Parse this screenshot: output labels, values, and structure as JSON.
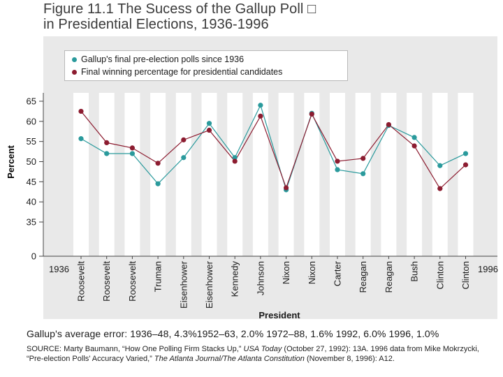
{
  "title": {
    "line1": "Figure 11.1  The Sucess of the Gallup Poll □",
    "line2": "in Presidential Elections, 1936-1996"
  },
  "legend": {
    "gallup": "Gallup's final pre-election polls since 1936",
    "winning": "Final winning percentage for presidential candidates"
  },
  "colors": {
    "gallup": "#2a9a9c",
    "winning": "#8c1c30",
    "band": "#ffffff",
    "panel": "#e9e9e9"
  },
  "chart_data": {
    "type": "line",
    "title": "The Sucess of the Gallup Poll in Presidential Elections, 1936-1996",
    "ylabel": "Percent",
    "xlabel": "President",
    "yticks": [
      0,
      35,
      40,
      45,
      50,
      55,
      60,
      65
    ],
    "ylim": [
      0,
      65
    ],
    "x_start_label": "1936",
    "x_end_label": "1996",
    "categories": [
      "Roosevelt",
      "Roosevelt",
      "Roosevelt",
      "Truman",
      "Eisenhower",
      "Eisenhower",
      "Kennedy",
      "Johnson",
      "Nixon",
      "Nixon",
      "Carter",
      "Reagan",
      "Reagan",
      "Bush",
      "Clinton",
      "Clinton"
    ],
    "series": [
      {
        "name": "Gallup's final pre-election polls since 1936",
        "color": "#2a9a9c",
        "values": [
          55.7,
          52.0,
          52.0,
          44.5,
          51.0,
          59.5,
          51.0,
          64.0,
          43.0,
          62.0,
          48.0,
          47.0,
          59.0,
          56.0,
          49.0,
          52.0
        ]
      },
      {
        "name": "Final winning percentage for presidential candidates",
        "color": "#8c1c30",
        "values": [
          62.5,
          54.7,
          53.4,
          49.6,
          55.4,
          57.8,
          50.1,
          61.3,
          43.5,
          61.8,
          50.1,
          50.8,
          59.2,
          53.9,
          43.3,
          49.2
        ]
      }
    ]
  },
  "footer": {
    "average_error": "Gallup's average error: 1936–48, 4.3%1952–63, 2.0%  1972–88, 1.6%   1992, 6.0%   1996, 1.0%",
    "source_part1": "SOURCE:  Marty Baumann, “How One Polling Firm Stacks Up,” ",
    "source_pub1": "USA Today",
    "source_part2": " (October 27, 1992): 13A. 1996 data from Mike Mokrzycki, “Pre-election Polls' Accuracy Varied,” ",
    "source_pub2": "The Atlanta Journal/The Atlanta Constitution",
    "source_part3": " (November 8, 1996): A12."
  }
}
